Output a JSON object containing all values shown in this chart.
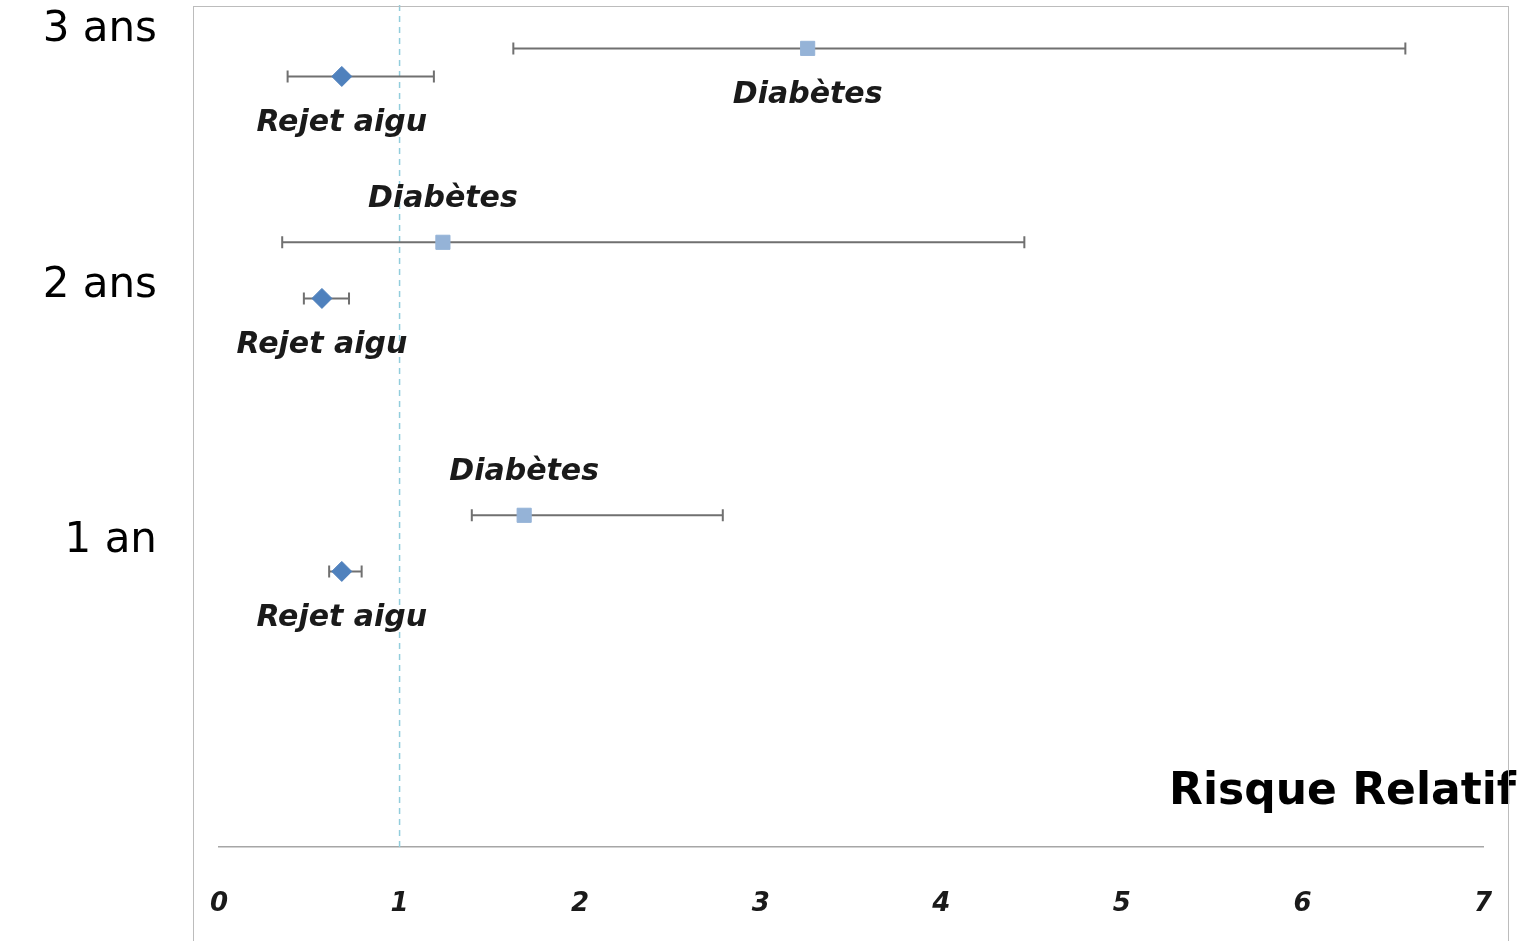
{
  "chart_data": {
    "type": "scatter",
    "xlabel": "Risque Relatif",
    "xlim": [
      0,
      7
    ],
    "xticks": [
      0,
      1,
      2,
      3,
      4,
      5,
      6,
      7
    ],
    "ylim": [
      -0.2,
      3.1
    ],
    "yticks": [
      {
        "value": 1,
        "label": "1 an"
      },
      {
        "value": 2,
        "label": "2 ans"
      },
      {
        "value": 3,
        "label": "3 ans"
      }
    ],
    "grid": false,
    "legend": false,
    "series": [
      {
        "name": "Diabètes",
        "color": "#95b3d7",
        "marker": "square",
        "x": [
          3.26,
          1.24,
          1.69
        ],
        "values": [
          2.93,
          2.17,
          1.1
        ],
        "xerrors": [
          [
            1.63,
            6.57
          ],
          [
            0.35,
            4.46
          ],
          [
            1.4,
            2.79
          ]
        ]
      },
      {
        "name": "Rejet aigu",
        "color": "#4f81bd",
        "marker": "diamond",
        "x": [
          0.68,
          0.57,
          0.68
        ],
        "values": [
          2.82,
          1.95,
          0.88
        ],
        "xerrors": [
          [
            0.38,
            1.19
          ],
          [
            0.47,
            0.72
          ],
          [
            0.61,
            0.79
          ]
        ]
      }
    ],
    "ref_lines": [
      {
        "axis": "x",
        "value": 1,
        "color": "#92cddc",
        "line_style": "dashed"
      }
    ]
  }
}
